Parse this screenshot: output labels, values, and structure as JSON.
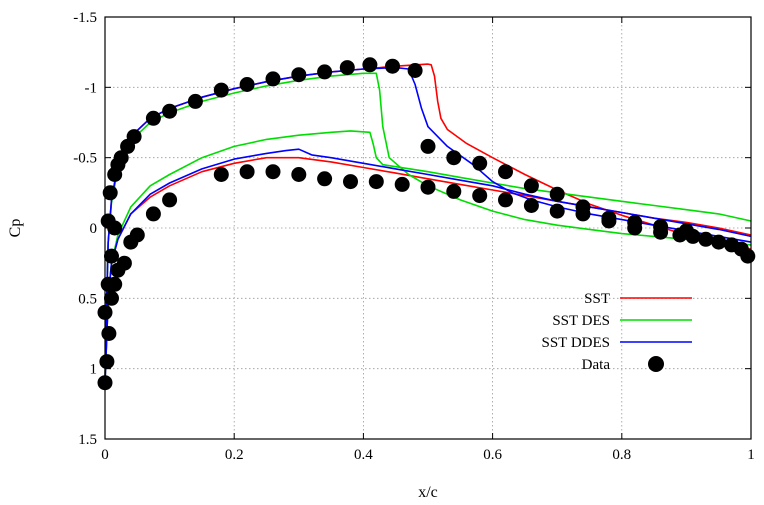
{
  "chart_data": {
    "type": "line",
    "title": "",
    "xlabel": "x/c",
    "ylabel": "Cp",
    "xlim": [
      0,
      1
    ],
    "ylim": [
      -1.5,
      1.5
    ],
    "y_inverted": true,
    "grid": true,
    "legend_position": "lower-right",
    "xticks": [
      "0",
      "0.2",
      "0.4",
      "0.6",
      "0.8",
      "1"
    ],
    "xtick_values": [
      0,
      0.2,
      0.4,
      0.6,
      0.8,
      1.0
    ],
    "yticks": [
      "-1.5",
      "-1",
      "-0.5",
      "0",
      "0.5",
      "1",
      "1.5"
    ],
    "ytick_values": [
      -1.5,
      -1.0,
      -0.5,
      0,
      0.5,
      1.0,
      1.5
    ],
    "series": [
      {
        "name": "SST",
        "kind": "line",
        "color": "#ff0000",
        "upper": [
          [
            0,
            1.1
          ],
          [
            0.002,
            0.6
          ],
          [
            0.005,
            0.1
          ],
          [
            0.01,
            -0.2
          ],
          [
            0.02,
            -0.45
          ],
          [
            0.04,
            -0.65
          ],
          [
            0.07,
            -0.78
          ],
          [
            0.1,
            -0.85
          ],
          [
            0.15,
            -0.93
          ],
          [
            0.2,
            -0.99
          ],
          [
            0.25,
            -1.04
          ],
          [
            0.3,
            -1.08
          ],
          [
            0.35,
            -1.11
          ],
          [
            0.4,
            -1.13
          ],
          [
            0.45,
            -1.15
          ],
          [
            0.5,
            -1.165
          ],
          [
            0.505,
            -1.16
          ],
          [
            0.51,
            -1.08
          ],
          [
            0.515,
            -0.9
          ],
          [
            0.52,
            -0.78
          ],
          [
            0.53,
            -0.7
          ],
          [
            0.56,
            -0.6
          ],
          [
            0.6,
            -0.5
          ],
          [
            0.65,
            -0.38
          ],
          [
            0.7,
            -0.27
          ],
          [
            0.75,
            -0.17
          ],
          [
            0.8,
            -0.09
          ],
          [
            0.85,
            -0.02
          ],
          [
            0.9,
            0.05
          ],
          [
            0.95,
            0.1
          ],
          [
            1.0,
            0.15
          ]
        ],
        "lower": [
          [
            0,
            1.1
          ],
          [
            0.005,
            0.5
          ],
          [
            0.01,
            0.25
          ],
          [
            0.02,
            0.08
          ],
          [
            0.04,
            -0.1
          ],
          [
            0.07,
            -0.22
          ],
          [
            0.1,
            -0.3
          ],
          [
            0.15,
            -0.4
          ],
          [
            0.2,
            -0.46
          ],
          [
            0.25,
            -0.5
          ],
          [
            0.3,
            -0.5
          ],
          [
            0.35,
            -0.47
          ],
          [
            0.4,
            -0.43
          ],
          [
            0.45,
            -0.39
          ],
          [
            0.5,
            -0.35
          ],
          [
            0.55,
            -0.31
          ],
          [
            0.6,
            -0.27
          ],
          [
            0.65,
            -0.23
          ],
          [
            0.7,
            -0.19
          ],
          [
            0.75,
            -0.15
          ],
          [
            0.8,
            -0.11
          ],
          [
            0.85,
            -0.07
          ],
          [
            0.9,
            -0.04
          ],
          [
            0.95,
            0.0
          ],
          [
            1.0,
            0.05
          ]
        ]
      },
      {
        "name": "SST DES",
        "kind": "line",
        "color": "#00dd00",
        "upper": [
          [
            0,
            1.1
          ],
          [
            0.002,
            0.6
          ],
          [
            0.005,
            0.1
          ],
          [
            0.01,
            -0.18
          ],
          [
            0.02,
            -0.42
          ],
          [
            0.04,
            -0.62
          ],
          [
            0.07,
            -0.75
          ],
          [
            0.1,
            -0.82
          ],
          [
            0.15,
            -0.9
          ],
          [
            0.2,
            -0.96
          ],
          [
            0.25,
            -1.01
          ],
          [
            0.3,
            -1.05
          ],
          [
            0.35,
            -1.08
          ],
          [
            0.4,
            -1.1
          ],
          [
            0.42,
            -1.1
          ],
          [
            0.425,
            -0.98
          ],
          [
            0.43,
            -0.72
          ],
          [
            0.44,
            -0.5
          ],
          [
            0.47,
            -0.38
          ],
          [
            0.5,
            -0.3
          ],
          [
            0.55,
            -0.2
          ],
          [
            0.6,
            -0.12
          ],
          [
            0.65,
            -0.06
          ],
          [
            0.7,
            -0.02
          ],
          [
            0.75,
            0.01
          ],
          [
            0.8,
            0.04
          ],
          [
            0.85,
            0.06
          ],
          [
            0.9,
            0.08
          ],
          [
            0.95,
            0.1
          ],
          [
            1.0,
            0.12
          ]
        ],
        "lower": [
          [
            0,
            1.1
          ],
          [
            0.005,
            0.5
          ],
          [
            0.01,
            0.25
          ],
          [
            0.02,
            0.05
          ],
          [
            0.04,
            -0.15
          ],
          [
            0.07,
            -0.3
          ],
          [
            0.1,
            -0.38
          ],
          [
            0.15,
            -0.5
          ],
          [
            0.2,
            -0.58
          ],
          [
            0.25,
            -0.63
          ],
          [
            0.3,
            -0.66
          ],
          [
            0.35,
            -0.68
          ],
          [
            0.38,
            -0.69
          ],
          [
            0.41,
            -0.68
          ],
          [
            0.415,
            -0.6
          ],
          [
            0.42,
            -0.5
          ],
          [
            0.43,
            -0.45
          ],
          [
            0.5,
            -0.4
          ],
          [
            0.55,
            -0.36
          ],
          [
            0.6,
            -0.32
          ],
          [
            0.65,
            -0.28
          ],
          [
            0.7,
            -0.25
          ],
          [
            0.75,
            -0.22
          ],
          [
            0.8,
            -0.19
          ],
          [
            0.85,
            -0.16
          ],
          [
            0.9,
            -0.13
          ],
          [
            0.95,
            -0.1
          ],
          [
            1.0,
            -0.05
          ]
        ]
      },
      {
        "name": "SST DDES",
        "kind": "line",
        "color": "#0000ff",
        "upper": [
          [
            0,
            1.1
          ],
          [
            0.002,
            0.6
          ],
          [
            0.005,
            0.1
          ],
          [
            0.01,
            -0.2
          ],
          [
            0.02,
            -0.45
          ],
          [
            0.04,
            -0.65
          ],
          [
            0.07,
            -0.78
          ],
          [
            0.1,
            -0.85
          ],
          [
            0.15,
            -0.93
          ],
          [
            0.2,
            -0.99
          ],
          [
            0.25,
            -1.04
          ],
          [
            0.3,
            -1.08
          ],
          [
            0.35,
            -1.11
          ],
          [
            0.4,
            -1.13
          ],
          [
            0.45,
            -1.14
          ],
          [
            0.47,
            -1.13
          ],
          [
            0.48,
            -1.02
          ],
          [
            0.49,
            -0.85
          ],
          [
            0.5,
            -0.72
          ],
          [
            0.53,
            -0.58
          ],
          [
            0.57,
            -0.45
          ],
          [
            0.6,
            -0.33
          ],
          [
            0.63,
            -0.25
          ],
          [
            0.66,
            -0.2
          ],
          [
            0.7,
            -0.15
          ],
          [
            0.75,
            -0.1
          ],
          [
            0.8,
            -0.06
          ],
          [
            0.85,
            -0.02
          ],
          [
            0.9,
            0.02
          ],
          [
            0.95,
            0.06
          ],
          [
            1.0,
            0.1
          ]
        ],
        "lower": [
          [
            0,
            1.1
          ],
          [
            0.005,
            0.5
          ],
          [
            0.01,
            0.25
          ],
          [
            0.02,
            0.08
          ],
          [
            0.04,
            -0.1
          ],
          [
            0.07,
            -0.24
          ],
          [
            0.1,
            -0.32
          ],
          [
            0.15,
            -0.42
          ],
          [
            0.2,
            -0.49
          ],
          [
            0.25,
            -0.53
          ],
          [
            0.28,
            -0.55
          ],
          [
            0.3,
            -0.56
          ],
          [
            0.32,
            -0.52
          ],
          [
            0.35,
            -0.5
          ],
          [
            0.4,
            -0.46
          ],
          [
            0.45,
            -0.42
          ],
          [
            0.5,
            -0.38
          ],
          [
            0.55,
            -0.34
          ],
          [
            0.6,
            -0.3
          ],
          [
            0.65,
            -0.24
          ],
          [
            0.7,
            -0.19
          ],
          [
            0.75,
            -0.15
          ],
          [
            0.8,
            -0.11
          ],
          [
            0.85,
            -0.07
          ],
          [
            0.9,
            -0.03
          ],
          [
            0.95,
            0.01
          ],
          [
            1.0,
            0.06
          ]
        ]
      },
      {
        "name": "Data",
        "kind": "scatter",
        "color": "#000000",
        "points": [
          [
            0.0,
            1.1
          ],
          [
            0.003,
            0.95
          ],
          [
            0.006,
            0.75
          ],
          [
            0.0,
            0.6
          ],
          [
            0.005,
            0.4
          ],
          [
            0.01,
            0.2
          ],
          [
            0.015,
            0.0
          ],
          [
            0.005,
            -0.05
          ],
          [
            0.008,
            -0.25
          ],
          [
            0.015,
            -0.38
          ],
          [
            0.02,
            -0.45
          ],
          [
            0.025,
            -0.5
          ],
          [
            0.035,
            -0.58
          ],
          [
            0.045,
            -0.65
          ],
          [
            0.075,
            -0.78
          ],
          [
            0.1,
            -0.83
          ],
          [
            0.14,
            -0.9
          ],
          [
            0.18,
            -0.98
          ],
          [
            0.22,
            -1.02
          ],
          [
            0.26,
            -1.06
          ],
          [
            0.3,
            -1.09
          ],
          [
            0.34,
            -1.11
          ],
          [
            0.375,
            -1.14
          ],
          [
            0.41,
            -1.16
          ],
          [
            0.445,
            -1.15
          ],
          [
            0.48,
            -1.12
          ],
          [
            0.5,
            -0.58
          ],
          [
            0.54,
            -0.5
          ],
          [
            0.58,
            -0.46
          ],
          [
            0.62,
            -0.4
          ],
          [
            0.66,
            -0.3
          ],
          [
            0.7,
            -0.24
          ],
          [
            0.74,
            -0.15
          ],
          [
            0.78,
            -0.05
          ],
          [
            0.82,
            0.0
          ],
          [
            0.86,
            0.03
          ],
          [
            0.89,
            0.05
          ],
          [
            0.91,
            0.06
          ],
          [
            0.93,
            0.08
          ],
          [
            0.95,
            0.1
          ],
          [
            0.97,
            0.12
          ],
          [
            0.985,
            0.15
          ],
          [
            0.995,
            0.2
          ],
          [
            0.02,
            0.3
          ],
          [
            0.015,
            0.4
          ],
          [
            0.01,
            0.5
          ],
          [
            0.03,
            0.25
          ],
          [
            0.04,
            0.1
          ],
          [
            0.05,
            0.05
          ],
          [
            0.075,
            -0.1
          ],
          [
            0.1,
            -0.2
          ],
          [
            0.18,
            -0.38
          ],
          [
            0.22,
            -0.4
          ],
          [
            0.26,
            -0.4
          ],
          [
            0.3,
            -0.38
          ],
          [
            0.34,
            -0.35
          ],
          [
            0.38,
            -0.33
          ],
          [
            0.42,
            -0.33
          ],
          [
            0.46,
            -0.31
          ],
          [
            0.5,
            -0.29
          ],
          [
            0.54,
            -0.26
          ],
          [
            0.58,
            -0.23
          ],
          [
            0.62,
            -0.2
          ],
          [
            0.66,
            -0.16
          ],
          [
            0.7,
            -0.12
          ],
          [
            0.74,
            -0.1
          ],
          [
            0.78,
            -0.07
          ],
          [
            0.82,
            -0.04
          ],
          [
            0.86,
            -0.01
          ],
          [
            0.9,
            0.02
          ]
        ]
      }
    ]
  }
}
